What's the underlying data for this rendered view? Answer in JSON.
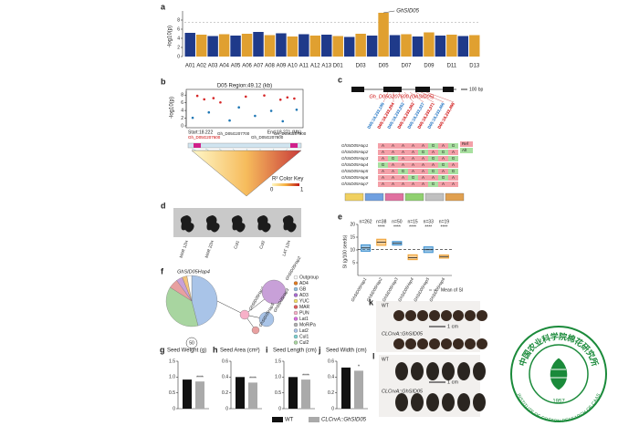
{
  "figure": {
    "a": {
      "label": "a",
      "ylabel": "-log10(p)",
      "ylim": [
        0,
        10
      ],
      "yticks": [
        0,
        2,
        4,
        6,
        8
      ],
      "threshold": 7.5,
      "chromosomes": [
        "A01",
        "A02",
        "A03",
        "A04",
        "A05",
        "A06",
        "A07",
        "A08",
        "A09",
        "A10",
        "A11",
        "A12",
        "A13",
        "D01",
        null,
        "D03",
        null,
        "D05",
        null,
        "D07",
        null,
        "D09",
        null,
        "D11",
        null,
        "D13"
      ],
      "peaks": [
        5.2,
        4.8,
        4.5,
        4.9,
        4.6,
        5.0,
        5.4,
        4.7,
        5.1,
        4.4,
        4.9,
        4.6,
        4.8,
        4.5,
        4.3,
        5.0,
        4.6,
        9.6,
        4.7,
        4.9,
        4.4,
        5.3,
        4.6,
        4.8,
        4.5,
        4.7
      ],
      "colors": [
        "#1f3a8a",
        "#e0a030"
      ],
      "annotation": "GhSID05"
    },
    "b": {
      "label": "b",
      "title": "D05 Region:49.12 (kb)",
      "ylabel": "-log10(p)",
      "xlim": [
        18.222,
        18.271
      ],
      "ylim": [
        0,
        9
      ],
      "yticks": [
        0,
        2,
        4,
        6,
        8
      ],
      "start": "Start:18.222",
      "end": "End:18.271 (Mb)",
      "genes": [
        "Gh_D05G207600",
        "Gh_D05G207700",
        "Gh_D05G207800",
        "Gh_D05G207900"
      ],
      "red_points": {
        "color": "#d62728",
        "x": [
          18.226,
          18.229,
          18.233,
          18.236,
          18.247,
          18.255,
          18.262,
          18.265,
          18.268
        ],
        "y": [
          7.8,
          6.9,
          7.2,
          6.1,
          7.6,
          7.9,
          6.8,
          7.4,
          7.1
        ]
      },
      "blue_points": {
        "color": "#1f77b4",
        "x": [
          18.224,
          18.231,
          18.24,
          18.244,
          18.251,
          18.258,
          18.263,
          18.269
        ],
        "y": [
          2.1,
          3.5,
          1.4,
          4.8,
          2.6,
          3.9,
          1.2,
          4.2
        ]
      },
      "key_title": "R² Color Key",
      "key_min": "0",
      "key_max": "1"
    },
    "c": {
      "label": "c",
      "gene": "Gh_D05G207600 (GhSID05)",
      "scale": "100 bp",
      "snps": [
        "D05:18,233,189",
        "D05:18,233,204",
        "D05:18,233,262",
        "D05:18,233,302",
        "D05:18,233,327",
        "D05:18,233,371",
        "D05:18,233,406",
        "D05:18,233,498"
      ],
      "haps": [
        "GhSID05Hap1",
        "GhSID05Hap2",
        "GhSID05Hap3",
        "GhSID05Hap4",
        "GhSID05Hap5",
        "GhSID05Hap6",
        "GhSID05Hap7"
      ],
      "alleles": [
        [
          "A",
          "A",
          "A",
          "A",
          "A",
          "G",
          "A",
          "G"
        ],
        [
          "A",
          "A",
          "A",
          "A",
          "G",
          "A",
          "G",
          "A"
        ],
        [
          "A",
          "G",
          "A",
          "A",
          "A",
          "G",
          "A",
          "G"
        ],
        [
          "G",
          "A",
          "A",
          "A",
          "A",
          "A",
          "G",
          "A"
        ],
        [
          "A",
          "A",
          "G",
          "A",
          "A",
          "G",
          "A",
          "G"
        ],
        [
          "A",
          "A",
          "A",
          "G",
          "A",
          "A",
          "G",
          "A"
        ],
        [
          "A",
          "A",
          "A",
          "A",
          "A",
          "G",
          "A",
          "A"
        ]
      ],
      "ref": "Ref",
      "alt": "Alt"
    },
    "d": {
      "label": "d",
      "accessions": [
        "MAR 1ZH",
        "MAR 2ZH",
        "Cul1",
        "Cul2",
        "LAT 1ZH"
      ]
    },
    "e": {
      "label": "e",
      "ylabel": "SI (g/100 seeds)",
      "ylim": [
        0,
        20
      ],
      "yticks": [
        5,
        10,
        15,
        20
      ],
      "mean": 10.2,
      "mean_label": "Mean of SI",
      "categories": [
        "GhSID05Hap1",
        "GhSID05Hap2",
        "GhSID05Hap3",
        "GhSID05Hap4",
        "GhSID05Hap5",
        "GhSID05Hap6"
      ],
      "n": [
        "n=262",
        "n=38",
        "n=50",
        "n=15",
        "n=33",
        "n=19"
      ],
      "stars": [
        null,
        "****",
        "****",
        "****",
        "****",
        "****"
      ],
      "q1": [
        9.5,
        11.8,
        11.9,
        6.2,
        9.0,
        6.8
      ],
      "median": [
        10.8,
        13.0,
        12.6,
        7.0,
        10.1,
        7.4
      ],
      "q3": [
        12.0,
        14.2,
        13.3,
        8.1,
        11.2,
        8.0
      ],
      "colors": [
        "#3a8fd0",
        "#f0a030",
        "#3a8fd0",
        "#f0a030",
        "#3a8fd0",
        "#f0a030"
      ]
    },
    "f": {
      "label": "f",
      "pie_title": "GhSID05Hap4",
      "pie": {
        "values": [
          46,
          38,
          6,
          4,
          3,
          3
        ],
        "colors": [
          "#a9c4e8",
          "#a8d5a0",
          "#e8a0a0",
          "#c8a0d8",
          "#f3c37a",
          "#ffffff"
        ]
      },
      "nodes": [
        "GhSID05Hap1",
        "GhSID05Hap2",
        "GhSID05Hap3",
        "GhSID05Hap5"
      ],
      "size_key": "50",
      "groups": [
        "Outgroup",
        "AD4",
        "GB",
        "AD3",
        "YUC",
        "MAR",
        "PUN",
        "Lat1",
        "MoRiPa",
        "Lat2",
        "Cul1",
        "Cul2"
      ],
      "group_colors": [
        "#ffffff",
        "#e07a20",
        "#8fbfe0",
        "#a86ad0",
        "#f3e06a",
        "#e05a5a",
        "#f7b0c8",
        "#d86ae0",
        "#b0b0b0",
        "#a9c4e8",
        "#7ad0d0",
        "#a8d5a0"
      ]
    },
    "bars": [
      {
        "label": "g",
        "title": "Seed Weight (g)",
        "ylim": [
          0,
          1.5
        ],
        "yticks": [
          0,
          0.5,
          {
            "value": 1,
            "label": "1.0"
          },
          1.5
        ],
        "values": [
          0.92,
          0.86
        ],
        "stars": "****"
      },
      {
        "label": "h",
        "title": "Seed Area (cm²)",
        "ylim": [
          0,
          0.6
        ],
        "yticks": [
          0,
          0.2,
          0.4,
          0.6
        ],
        "values": [
          0.4,
          0.33
        ],
        "stars": "****"
      },
      {
        "label": "i",
        "title": "Seed Length (cm)",
        "ylim": [
          0,
          1.5
        ],
        "yticks": [
          0,
          0.5,
          {
            "value": 1,
            "label": "1.0"
          },
          1.5
        ],
        "values": [
          1.0,
          0.92
        ],
        "stars": "****"
      },
      {
        "label": "j",
        "title": "Seed Width (cm)",
        "ylim": [
          0,
          0.6
        ],
        "yticks": [
          0,
          0.2,
          0.4,
          0.6
        ],
        "values": [
          0.52,
          0.48
        ],
        "stars": "*"
      }
    ],
    "legend": {
      "names": [
        "WT",
        "CLCrvA::GhSID05"
      ],
      "colors": [
        "#111111",
        "#aaaaaa"
      ]
    },
    "k": {
      "label": "k",
      "wt": "WT",
      "mutant": "CLCrvA::GhSID05",
      "scale": "1 cm"
    },
    "l": {
      "label": "l",
      "wt": "WT",
      "mutant": "CLCrvA::GhSID05",
      "scale": "1 cm"
    }
  },
  "logo": {
    "chinese": "中国农业科学院棉花研究所",
    "english": "INSTITUTE OF COTTON RESEARCH OF CAAS",
    "year": "1957"
  }
}
